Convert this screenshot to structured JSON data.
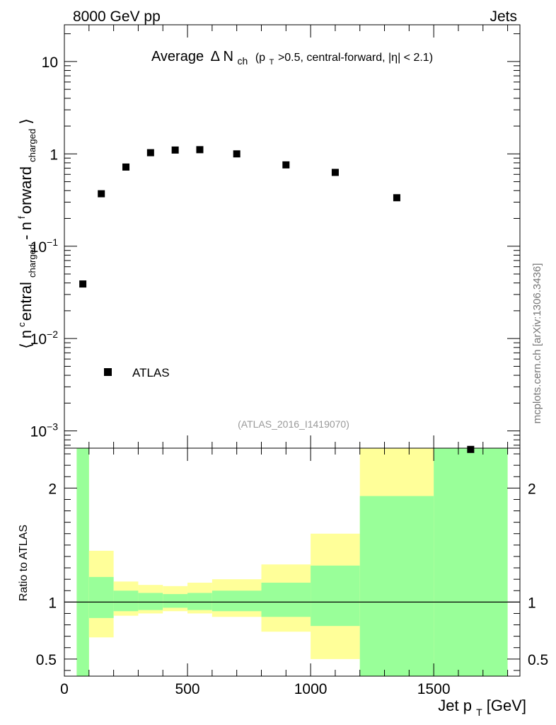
{
  "header": {
    "left": "8000 GeV pp",
    "right": "Jets"
  },
  "side_label": "mcplots.cern.ch [arXiv:1306.3436]",
  "colors": {
    "data": "#000000",
    "band_inner": "#99ff99",
    "band_outer": "#ffff99",
    "frame": "#000000",
    "id_text": "#999999"
  },
  "chart_data": [
    {
      "type": "scatter",
      "title_main": "Average",
      "title_delta": "Δ N",
      "title_sub": "ch",
      "title_p": "(p",
      "title_p_sub": "T",
      "title_rest": ">0.5, central-forward, |η| < 2.1)",
      "analysis_id": "(ATLAS_2016_I1419070)",
      "ylabel_open": "⟨ n",
      "ylabel_c": "c",
      "ylabel_entral": "entral",
      "ylabel_sub1": "charged",
      "ylabel_mid": " - n",
      "ylabel_f": "f",
      "ylabel_orward": "orward",
      "ylabel_sub2": "charged",
      "ylabel_close": "⟩",
      "yscale": "log",
      "ylim": [
        0.00065,
        25
      ],
      "xlim": [
        0,
        1850
      ],
      "y_ticks": [
        {
          "value": 10,
          "base": "10",
          "exp": ""
        },
        {
          "value": 1,
          "base": "1",
          "exp": ""
        },
        {
          "value": 0.1,
          "base": "10",
          "exp": "−1"
        },
        {
          "value": 0.01,
          "base": "10",
          "exp": "−2"
        },
        {
          "value": 0.001,
          "base": "10",
          "exp": "−3"
        }
      ],
      "legend": [
        {
          "name": "ATLAS",
          "marker": "square",
          "position": "bottom-left"
        }
      ],
      "series": [
        {
          "name": "ATLAS",
          "x": [
            75,
            150,
            250,
            350,
            450,
            550,
            700,
            900,
            1100,
            1350,
            1650
          ],
          "y": [
            0.039,
            0.37,
            0.72,
            1.03,
            1.1,
            1.11,
            1.0,
            0.76,
            0.63,
            0.335,
            0.00063
          ]
        }
      ]
    },
    {
      "type": "area",
      "ylabel": "Ratio to ATLAS",
      "xlabel_main": "Jet p",
      "xlabel_sub": "T",
      "xlabel_unit": " [GeV]",
      "xlim": [
        0,
        1850
      ],
      "ylim": [
        0.35,
        2.35
      ],
      "x_ticks": [
        "0",
        "500",
        "1000",
        "1500"
      ],
      "x_tick_values": [
        0,
        500,
        1000,
        1500
      ],
      "y_ticks": [
        "0.5",
        "1",
        "2"
      ],
      "y_tick_values": [
        0.5,
        1,
        2
      ],
      "reference_line": 1,
      "bins": [
        {
          "lo": 50,
          "hi": 100,
          "inner": [
            0.35,
            2.35
          ],
          "outer": [
            0.35,
            2.35
          ]
        },
        {
          "lo": 100,
          "hi": 200,
          "inner": [
            0.86,
            1.22
          ],
          "outer": [
            0.69,
            1.45
          ]
        },
        {
          "lo": 200,
          "hi": 300,
          "inner": [
            0.92,
            1.1
          ],
          "outer": [
            0.88,
            1.18
          ]
        },
        {
          "lo": 300,
          "hi": 400,
          "inner": [
            0.93,
            1.08
          ],
          "outer": [
            0.9,
            1.15
          ]
        },
        {
          "lo": 400,
          "hi": 500,
          "inner": [
            0.95,
            1.07
          ],
          "outer": [
            0.92,
            1.14
          ]
        },
        {
          "lo": 500,
          "hi": 600,
          "inner": [
            0.93,
            1.08
          ],
          "outer": [
            0.9,
            1.17
          ]
        },
        {
          "lo": 600,
          "hi": 800,
          "inner": [
            0.92,
            1.1
          ],
          "outer": [
            0.87,
            1.2
          ]
        },
        {
          "lo": 800,
          "hi": 1000,
          "inner": [
            0.87,
            1.17
          ],
          "outer": [
            0.74,
            1.33
          ]
        },
        {
          "lo": 1000,
          "hi": 1200,
          "inner": [
            0.79,
            1.32
          ],
          "outer": [
            0.5,
            1.6
          ]
        },
        {
          "lo": 1200,
          "hi": 1500,
          "inner": [
            0.35,
            1.93
          ],
          "outer": [
            0.35,
            2.35
          ]
        },
        {
          "lo": 1500,
          "hi": 1800,
          "inner": [
            0.35,
            2.35
          ],
          "outer": [
            0.35,
            2.35
          ]
        }
      ]
    }
  ]
}
